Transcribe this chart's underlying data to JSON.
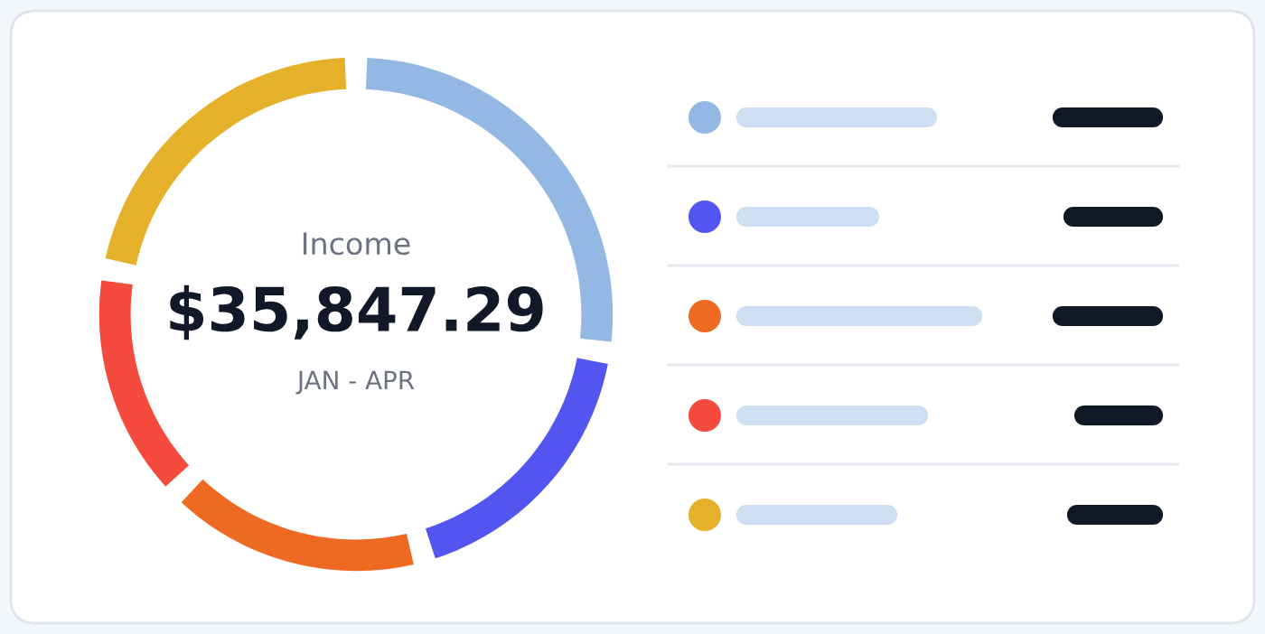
{
  "chart_data": {
    "type": "donut",
    "title": "Income",
    "subtitle": "JAN - APR",
    "annotations": [
      "$35,847.29"
    ],
    "categories": [
      null,
      null,
      null,
      null,
      null
    ],
    "values": [
      27.4,
      18.3,
      16.9,
      15.2,
      22.2
    ],
    "colors": [
      "#93b8e3",
      "#5255f0",
      "#ee6a22",
      "#f44b3e",
      "#e5b12a"
    ]
  }
}
